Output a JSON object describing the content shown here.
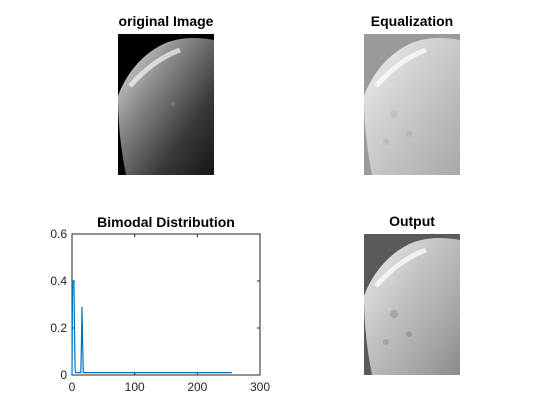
{
  "panels": {
    "original": {
      "title": "original Image"
    },
    "equalization": {
      "title": "Equalization"
    },
    "distribution": {
      "title": "Bimodal Distribution"
    },
    "output": {
      "title": "Output"
    }
  },
  "colors": {
    "line": "#0072bd",
    "axis": "#262626",
    "equalization_bg": "#9a9a9a",
    "output_bg": "#5a5a5a"
  },
  "chart_data": {
    "type": "line",
    "title": "Bimodal Distribution",
    "xlabel": "",
    "ylabel": "",
    "xlim": [
      0,
      300
    ],
    "ylim": [
      0,
      0.6
    ],
    "xticks": [
      0,
      100,
      200,
      300
    ],
    "yticks": [
      0,
      0.2,
      0.4,
      0.6
    ],
    "grid": false,
    "series": [
      {
        "x": [
          0,
          1,
          2,
          3,
          4,
          5,
          6,
          7,
          8,
          9,
          10,
          12,
          14,
          15,
          16,
          17,
          18,
          19,
          20,
          22,
          25,
          50,
          100,
          150,
          200,
          255
        ],
        "y": [
          0.0,
          0.4,
          0.4,
          0.4,
          0.2,
          0.02,
          0.01,
          0.01,
          0.01,
          0.01,
          0.01,
          0.01,
          0.01,
          0.12,
          0.29,
          0.12,
          0.01,
          0.01,
          0.01,
          0.01,
          0.01,
          0.01,
          0.01,
          0.01,
          0.01,
          0.01
        ]
      }
    ]
  }
}
